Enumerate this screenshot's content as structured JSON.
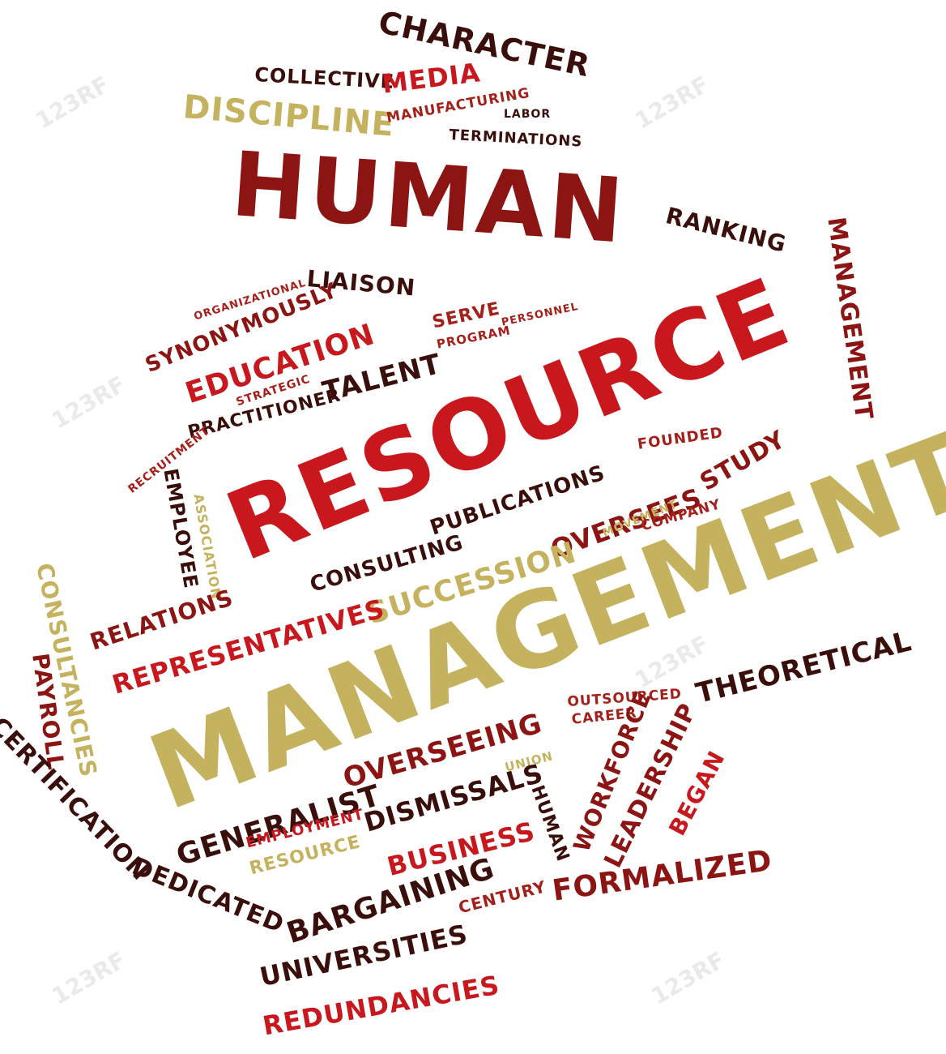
{
  "watermark": "123RF",
  "colors": {
    "red": "#c8181e",
    "dark_red": "#8c1413",
    "brown": "#3a0f0b",
    "gold": "#c5b25e"
  },
  "words": {
    "character": "CHARACTER",
    "collective": "COLLECTIVE",
    "media": "MEDIA",
    "discipline": "DISCIPLINE",
    "manufacturing": "MANUFACTURING",
    "labor": "LABOR",
    "terminations": "TERMINATIONS",
    "human": "HUMAN",
    "ranking": "RANKING",
    "management_vertical": "MANAGEMENT",
    "organizational": "ORGANIZATIONAL",
    "liaison": "LIAISON",
    "synonymously": "SYNONYMOUSLY",
    "education": "EDUCATION",
    "serve": "SERVE",
    "program": "PROGRAM",
    "personnel": "PERSONNEL",
    "talent": "TALENT",
    "strategic": "STRATEGIC",
    "practitioner": "PRACTITIONER",
    "resource": "RESOURCE",
    "recruitment": "RECRUITMENT",
    "employee": "EMPLOYEE",
    "association": "ASSOCIATION",
    "founded": "FOUNDED",
    "study": "STUDY",
    "publications": "PUBLICATIONS",
    "oversees": "OVERSEES",
    "movement": "MOVEMENT",
    "company": "COMPANY",
    "consultancies": "CONSULTANCIES",
    "consulting": "CONSULTING",
    "succession": "SUCCESSION",
    "relations": "RELATIONS",
    "representatives": "REPRESENTATIVES",
    "management": "MANAGEMENT",
    "theoretical": "THEORETICAL",
    "payroll": "PAYROLL",
    "certification": "CERTIFICATION",
    "outsourced": "OUTSOURCED",
    "career": "CAREER",
    "generalist": "GENERALIST",
    "overseeing": "OVERSEEING",
    "union": "UNION",
    "dismissals": "DISMISSALS",
    "human_small": "HUMAN",
    "workforce": "WORKFORCE",
    "leadership": "LEADERSHIP",
    "began": "BEGAN",
    "employment": "EMPLOYMENT",
    "resource_small": "RESOURCE",
    "business": "BUSINESS",
    "dedicated": "DEDICATED",
    "bargaining": "BARGAINING",
    "century": "CENTURY",
    "formalized": "FORMALIZED",
    "universities": "UNIVERSITIES",
    "redundancies": "REDUNDANCIES"
  }
}
